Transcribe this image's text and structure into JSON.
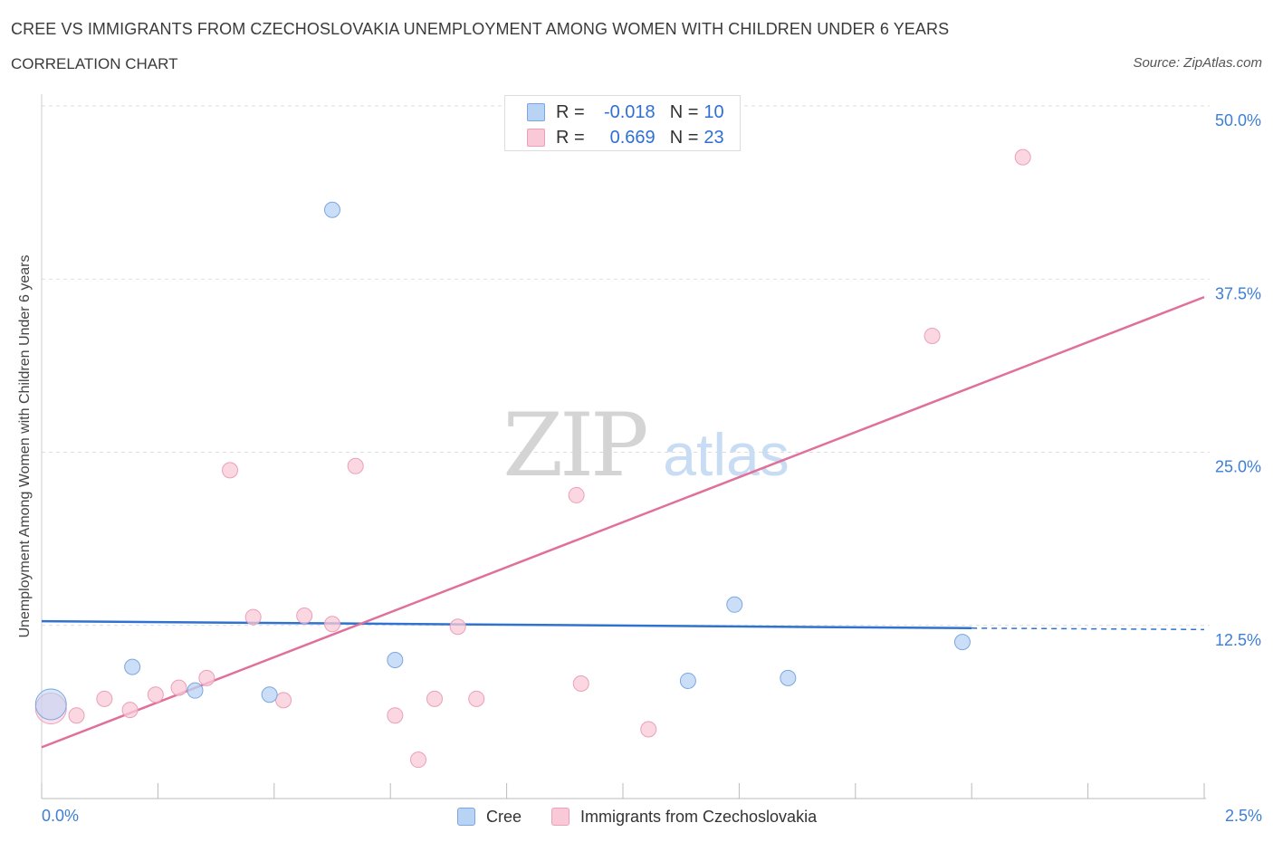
{
  "header": {
    "title": "CREE VS IMMIGRANTS FROM CZECHOSLOVAKIA UNEMPLOYMENT AMONG WOMEN WITH CHILDREN UNDER 6 YEARS",
    "subtitle": "CORRELATION CHART",
    "source": "Source: ZipAtlas.com"
  },
  "watermark": {
    "zip": "ZIP",
    "atlas": "atlas"
  },
  "stats_legend": {
    "rows": [
      {
        "r_label": "R =",
        "r_value": "-0.018",
        "n_label": "N =",
        "n_value": "10"
      },
      {
        "r_label": "R =",
        "r_value": "0.669",
        "n_label": "N =",
        "n_value": "23"
      }
    ]
  },
  "bottom_legend": {
    "cree": "Cree",
    "czech": "Immigrants from Czechoslovakia"
  },
  "colors": {
    "cree_fill": "#b9d3f5",
    "cree_stroke": "#7ba7e0",
    "cree_line": "#2f72d0",
    "czech_fill": "#f9c9d8",
    "czech_stroke": "#eaa0b8",
    "czech_line": "#e0709a",
    "axis_text": "#3d7fd6",
    "grid": "#dddddd"
  },
  "chart_data": {
    "type": "scatter",
    "title": "CREE VS IMMIGRANTS FROM CZECHOSLOVAKIA UNEMPLOYMENT AMONG WOMEN WITH CHILDREN UNDER 6 YEARS",
    "xlabel": "",
    "ylabel": "Unemployment Among Women with Children Under 6 years",
    "xlim": [
      0,
      2.5
    ],
    "ylim": [
      0,
      50
    ],
    "x_tick_labels": [
      "0.0%",
      "2.5%"
    ],
    "y_tick_labels": [
      "12.5%",
      "25.0%",
      "37.5%",
      "50.0%"
    ],
    "y_ticks": [
      12.5,
      25.0,
      37.5,
      50.0
    ],
    "legend_position": "top-center",
    "series": [
      {
        "name": "Cree",
        "points": [
          {
            "x": 0.02,
            "y": 6.8,
            "big": true
          },
          {
            "x": 0.195,
            "y": 9.5
          },
          {
            "x": 0.33,
            "y": 7.8
          },
          {
            "x": 0.49,
            "y": 7.5
          },
          {
            "x": 0.625,
            "y": 42.5
          },
          {
            "x": 0.76,
            "y": 10.0
          },
          {
            "x": 1.39,
            "y": 8.5
          },
          {
            "x": 1.49,
            "y": 14.0
          },
          {
            "x": 1.605,
            "y": 8.7
          },
          {
            "x": 1.98,
            "y": 11.3
          }
        ],
        "trend": {
          "x0": 0.0,
          "y0": 12.8,
          "x1": 2.0,
          "y1": 12.3,
          "dashed_to_x": 2.5,
          "dashed_to_y": 12.2
        }
      },
      {
        "name": "Immigrants from Czechoslovakia",
        "points": [
          {
            "x": 0.02,
            "y": 6.5,
            "big": true
          },
          {
            "x": 0.075,
            "y": 6.0
          },
          {
            "x": 0.135,
            "y": 7.2
          },
          {
            "x": 0.19,
            "y": 6.4
          },
          {
            "x": 0.245,
            "y": 7.5
          },
          {
            "x": 0.295,
            "y": 8.0
          },
          {
            "x": 0.355,
            "y": 8.7
          },
          {
            "x": 0.405,
            "y": 23.7
          },
          {
            "x": 0.455,
            "y": 13.1
          },
          {
            "x": 0.52,
            "y": 7.1
          },
          {
            "x": 0.565,
            "y": 13.2
          },
          {
            "x": 0.625,
            "y": 12.6
          },
          {
            "x": 0.675,
            "y": 24.0
          },
          {
            "x": 0.76,
            "y": 6.0
          },
          {
            "x": 0.81,
            "y": 2.8
          },
          {
            "x": 0.845,
            "y": 7.2
          },
          {
            "x": 0.895,
            "y": 12.4
          },
          {
            "x": 0.935,
            "y": 7.2
          },
          {
            "x": 1.15,
            "y": 21.9
          },
          {
            "x": 1.16,
            "y": 8.3
          },
          {
            "x": 1.305,
            "y": 5.0
          },
          {
            "x": 1.915,
            "y": 33.4
          },
          {
            "x": 2.11,
            "y": 46.3
          }
        ],
        "trend": {
          "x0": 0.0,
          "y0": 3.7,
          "x1": 2.5,
          "y1": 36.2
        }
      }
    ]
  }
}
